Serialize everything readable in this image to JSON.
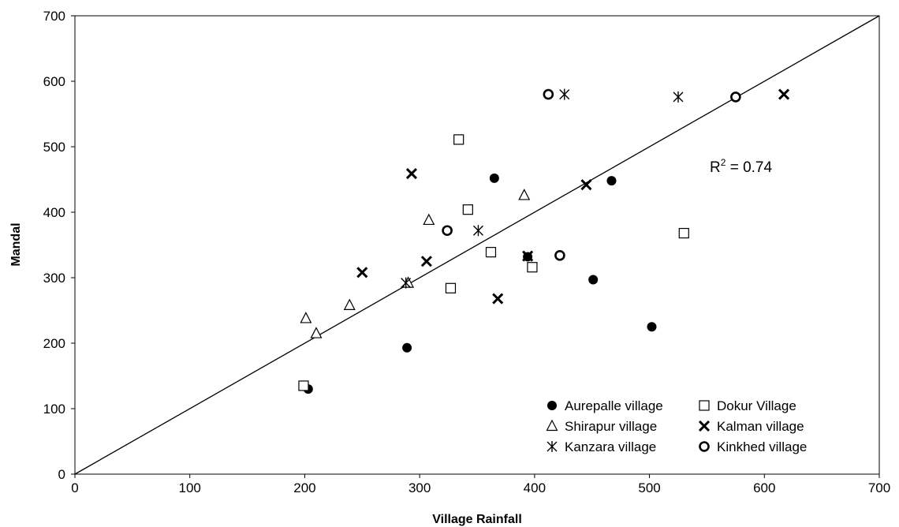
{
  "chart_data": {
    "type": "scatter",
    "xlabel": "Village Rainfall",
    "ylabel": "Mandal",
    "xlim": [
      0,
      700
    ],
    "ylim": [
      0,
      700
    ],
    "x_ticks": [
      0,
      100,
      200,
      300,
      400,
      500,
      600,
      700
    ],
    "y_ticks": [
      0,
      100,
      200,
      300,
      400,
      500,
      600,
      700
    ],
    "grid": false,
    "legend_position": "bottom-right",
    "reference_line": {
      "description": "1:1 line",
      "points": [
        [
          0,
          0
        ],
        [
          700,
          700
        ]
      ]
    },
    "annotation": {
      "prefix": "R",
      "superscript": "2",
      "suffix": " = 0.74"
    },
    "series": [
      {
        "name": "Aurepalle village",
        "marker": "filled-circle",
        "points": [
          [
            203,
            130
          ],
          [
            289,
            193
          ],
          [
            365,
            452
          ],
          [
            394,
            332
          ],
          [
            451,
            297
          ],
          [
            467,
            448
          ],
          [
            502,
            225
          ]
        ]
      },
      {
        "name": "Dokur Village",
        "marker": "open-square",
        "points": [
          [
            199,
            135
          ],
          [
            327,
            284
          ],
          [
            334,
            511
          ],
          [
            342,
            404
          ],
          [
            362,
            339
          ],
          [
            398,
            316
          ],
          [
            530,
            368
          ]
        ]
      },
      {
        "name": "Shirapur village",
        "marker": "open-triangle",
        "points": [
          [
            201,
            238
          ],
          [
            210,
            215
          ],
          [
            239,
            258
          ],
          [
            290,
            292
          ],
          [
            308,
            388
          ],
          [
            391,
            426
          ]
        ]
      },
      {
        "name": "Kalman village",
        "marker": "x-cross",
        "points": [
          [
            250,
            308
          ],
          [
            293,
            459
          ],
          [
            306,
            325
          ],
          [
            368,
            268
          ],
          [
            394,
            333
          ],
          [
            445,
            442
          ],
          [
            617,
            580
          ]
        ]
      },
      {
        "name": "Kanzara village",
        "marker": "asterisk",
        "points": [
          [
            288,
            292
          ],
          [
            351,
            372
          ],
          [
            426,
            580
          ],
          [
            525,
            576
          ]
        ]
      },
      {
        "name": "Kinkhed village",
        "marker": "open-circle",
        "points": [
          [
            324,
            372
          ],
          [
            412,
            580
          ],
          [
            422,
            334
          ],
          [
            575,
            576
          ]
        ]
      }
    ]
  }
}
